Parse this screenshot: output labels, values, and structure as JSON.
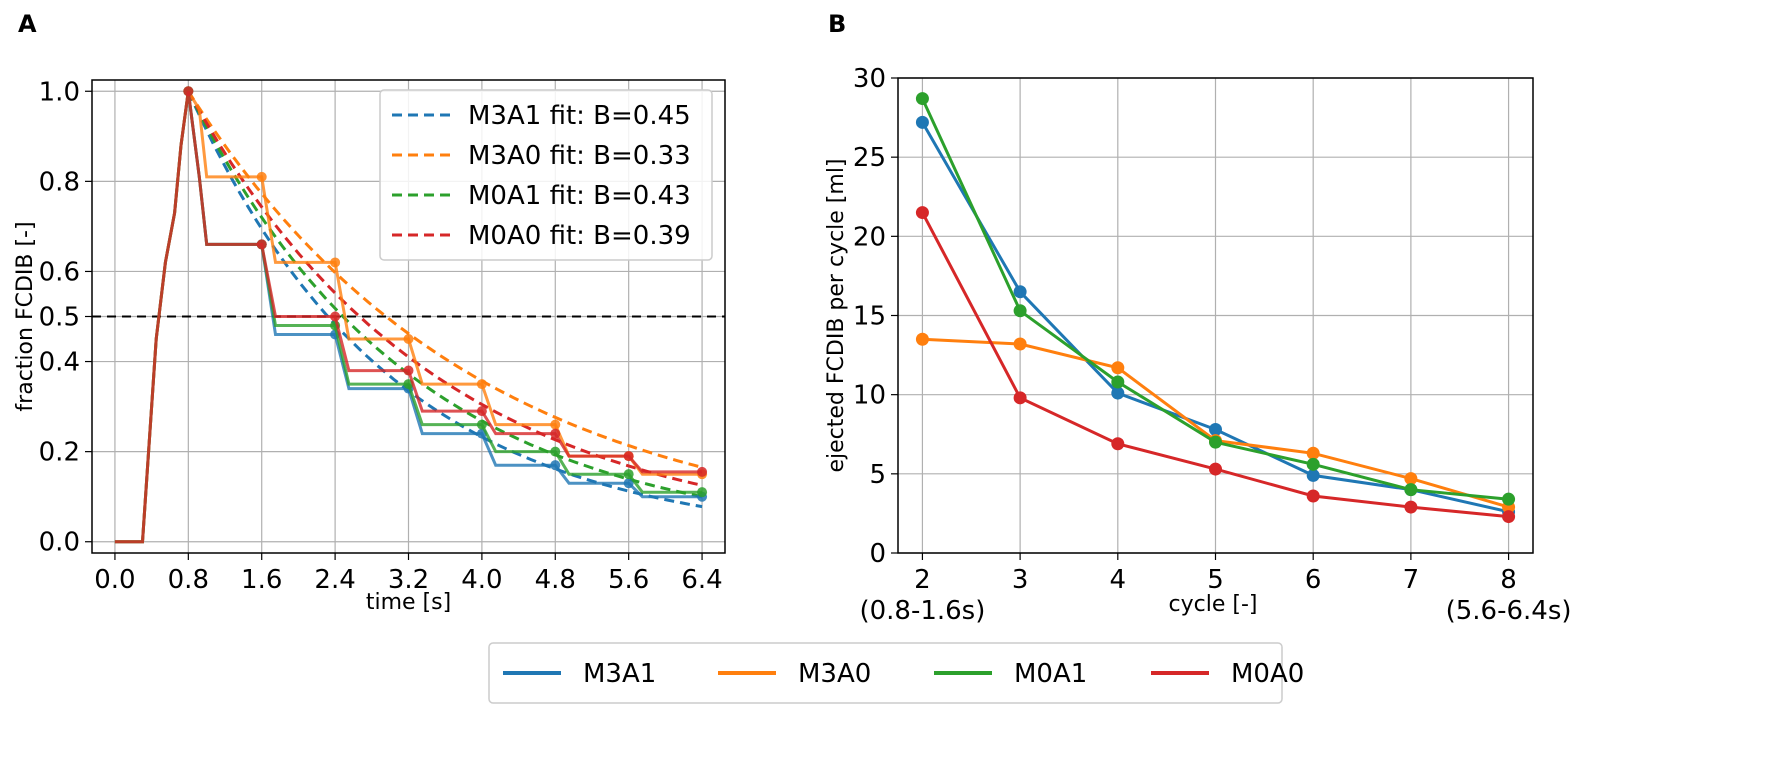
{
  "colors": {
    "M3A1": "#1f77b4",
    "M3A0": "#ff7f0e",
    "M0A1": "#2ca02c",
    "M0A0": "#d62728"
  },
  "shared_legend": [
    "M3A1",
    "M3A0",
    "M0A1",
    "M0A0"
  ],
  "chart_data": [
    {
      "panel": "A",
      "type": "line",
      "xlabel": "time [s]",
      "ylabel": "fraction FCDIB [-]",
      "xlim": [
        -0.25,
        6.65
      ],
      "ylim": [
        -0.025,
        1.025
      ],
      "xticks": [
        0.0,
        0.8,
        1.6,
        2.4,
        3.2,
        4.0,
        4.8,
        5.6,
        6.4
      ],
      "xtick_labels": [
        "0.0",
        "0.8",
        "1.6",
        "2.4",
        "3.2",
        "4.0",
        "4.8",
        "5.6",
        "6.4"
      ],
      "yticks": [
        0.0,
        0.2,
        0.4,
        0.5,
        0.6,
        0.8,
        1.0
      ],
      "ytick_labels": [
        "0.0",
        "0.2",
        "0.4",
        "0.5",
        "0.6",
        "0.8",
        "1.0"
      ],
      "grid": true,
      "hline": 0.5,
      "legend_position": "top-right",
      "cycle_times": [
        0.8,
        1.6,
        2.4,
        3.2,
        4.0,
        4.8,
        5.6,
        6.4
      ],
      "rise": [
        [
          0.0,
          0.0
        ],
        [
          0.3,
          0.0
        ],
        [
          0.45,
          0.45
        ],
        [
          0.55,
          0.62
        ],
        [
          0.65,
          0.73
        ],
        [
          0.72,
          0.88
        ],
        [
          0.8,
          1.0
        ]
      ],
      "series": [
        {
          "name": "M3A1",
          "color": "#1f77b4",
          "levels": [
            1.0,
            0.66,
            0.46,
            0.34,
            0.24,
            0.17,
            0.13,
            0.1
          ]
        },
        {
          "name": "M3A0",
          "color": "#ff7f0e",
          "levels": [
            1.0,
            0.81,
            0.62,
            0.45,
            0.35,
            0.26,
            0.19,
            0.15
          ]
        },
        {
          "name": "M0A1",
          "color": "#2ca02c",
          "levels": [
            1.0,
            0.66,
            0.48,
            0.35,
            0.26,
            0.2,
            0.15,
            0.11
          ]
        },
        {
          "name": "M0A0",
          "color": "#d62728",
          "levels": [
            1.0,
            0.66,
            0.5,
            0.38,
            0.29,
            0.24,
            0.19,
            0.155
          ]
        }
      ],
      "fits": [
        {
          "name": "M3A1",
          "label": "M3A1 fit: B=0.45",
          "color": "#1f77b4",
          "end": 0.078
        },
        {
          "name": "M3A0",
          "label": "M3A0 fit: B=0.33",
          "color": "#ff7f0e",
          "end": 0.165
        },
        {
          "name": "M0A1",
          "label": "M0A1 fit: B=0.43",
          "color": "#2ca02c",
          "end": 0.1
        },
        {
          "name": "M0A0",
          "label": "M0A0 fit: B=0.39",
          "color": "#d62728",
          "end": 0.125
        }
      ]
    },
    {
      "panel": "B",
      "type": "line",
      "xlabel": "cycle [-]",
      "ylabel": "ejected FCDIB per cycle [ml]",
      "xlim": [
        1.75,
        8.25
      ],
      "ylim": [
        0,
        30
      ],
      "xticks": [
        2,
        3,
        4,
        5,
        6,
        7,
        8
      ],
      "xtick_labels": [
        "2",
        "3",
        "4",
        "5",
        "6",
        "7",
        "8"
      ],
      "xtick_sublabels": {
        "2": "(0.8-1.6s)",
        "8": "(5.6-6.4s)"
      },
      "yticks": [
        0,
        5,
        10,
        15,
        20,
        25,
        30
      ],
      "ytick_labels": [
        "0",
        "5",
        "10",
        "15",
        "20",
        "25",
        "30"
      ],
      "grid": true,
      "x": [
        2,
        3,
        4,
        5,
        6,
        7,
        8
      ],
      "series": [
        {
          "name": "M3A1",
          "color": "#1f77b4",
          "values": [
            27.2,
            16.5,
            10.1,
            7.8,
            4.9,
            4.0,
            2.6
          ]
        },
        {
          "name": "M3A0",
          "color": "#ff7f0e",
          "values": [
            13.5,
            13.2,
            11.7,
            7.1,
            6.3,
            4.7,
            2.9
          ]
        },
        {
          "name": "M0A1",
          "color": "#2ca02c",
          "values": [
            28.7,
            15.3,
            10.8,
            7.0,
            5.6,
            4.0,
            3.4
          ]
        },
        {
          "name": "M0A0",
          "color": "#d62728",
          "values": [
            21.5,
            9.8,
            6.9,
            5.3,
            3.6,
            2.9,
            2.3
          ]
        }
      ]
    }
  ]
}
